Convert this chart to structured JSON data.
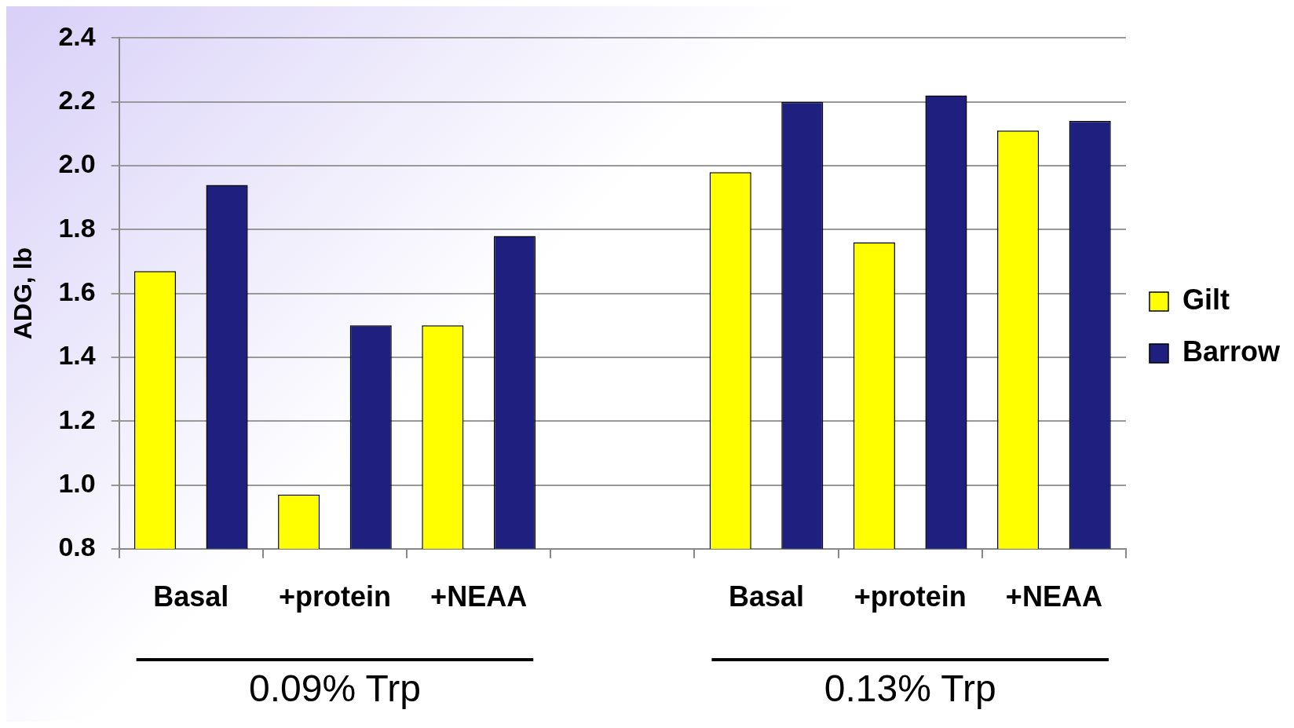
{
  "chart_data": {
    "type": "bar",
    "ylabel": "ADG, lb",
    "categories": [
      "Basal",
      "+protein",
      "+NEAA",
      null,
      "Basal",
      "+protein",
      "+NEAA"
    ],
    "series": [
      {
        "name": "Gilt",
        "color": "#ffff00",
        "values": [
          1.67,
          0.97,
          1.5,
          null,
          1.98,
          1.76,
          2.11
        ]
      },
      {
        "name": "Barrow",
        "color": "#1f1f7f",
        "values": [
          1.94,
          1.5,
          1.78,
          null,
          2.2,
          2.22,
          2.14
        ]
      }
    ],
    "ylim": [
      0.8,
      2.4
    ],
    "yticks": [
      0.8,
      {
        "value": 1,
        "label": "1.0"
      },
      1.2,
      1.4,
      1.6,
      1.8,
      {
        "value": 2,
        "label": "2.0"
      },
      2.2,
      2.4
    ],
    "grid": "y",
    "legend": "right",
    "annotations": [
      "0.09% Trp",
      "0.13% Trp"
    ]
  }
}
